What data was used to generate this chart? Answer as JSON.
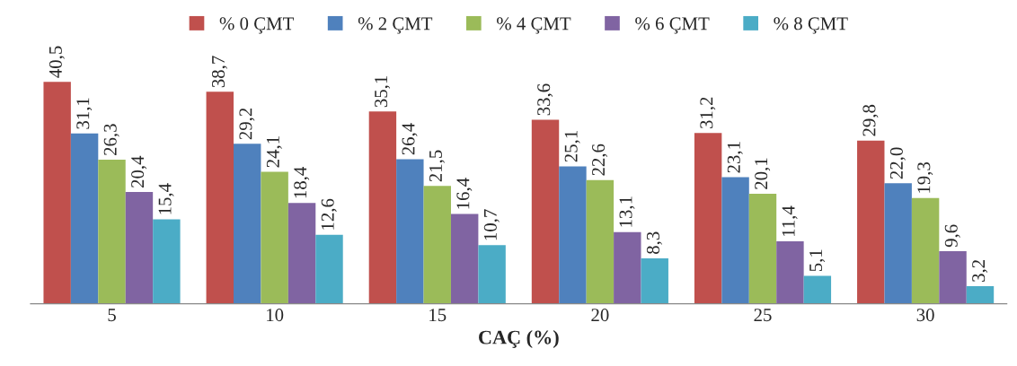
{
  "chart_data": {
    "type": "bar",
    "xlabel": "CAÇ (%)",
    "categories": [
      "5",
      "10",
      "15",
      "20",
      "25",
      "30"
    ],
    "series": [
      {
        "name": "% 0 ÇMT",
        "color": "#c0504d",
        "values": [
          40.5,
          38.7,
          35.1,
          33.6,
          31.2,
          29.8
        ],
        "value_labels": [
          "40,5",
          "38,7",
          "35,1",
          "33,6",
          "31,2",
          "29,8"
        ]
      },
      {
        "name": "% 2 ÇMT",
        "color": "#4f81bd",
        "values": [
          31.1,
          29.2,
          26.4,
          25.1,
          23.1,
          22.0
        ],
        "value_labels": [
          "31,1",
          "29,2",
          "26,4",
          "25,1",
          "23,1",
          "22,0"
        ]
      },
      {
        "name": "% 4 ÇMT",
        "color": "#9bbb59",
        "values": [
          26.3,
          24.1,
          21.5,
          22.6,
          20.1,
          19.3
        ],
        "value_labels": [
          "26,3",
          "24,1",
          "21,5",
          "22,6",
          "20,1",
          "19,3"
        ]
      },
      {
        "name": "% 6 ÇMT",
        "color": "#8064a2",
        "values": [
          20.4,
          18.4,
          16.4,
          13.1,
          11.4,
          9.6
        ],
        "value_labels": [
          "20,4",
          "18,4",
          "16,4",
          "13,1",
          "11,4",
          "9,6"
        ]
      },
      {
        "name": "% 8 ÇMT",
        "color": "#4bacc6",
        "values": [
          15.4,
          12.6,
          10.7,
          8.3,
          5.1,
          3.2
        ],
        "value_labels": [
          "15,4",
          "12,6",
          "10,7",
          "8,3",
          "5,1",
          "3,2"
        ]
      }
    ],
    "tick_labels": "x",
    "legend": "top",
    "grid": false
  }
}
